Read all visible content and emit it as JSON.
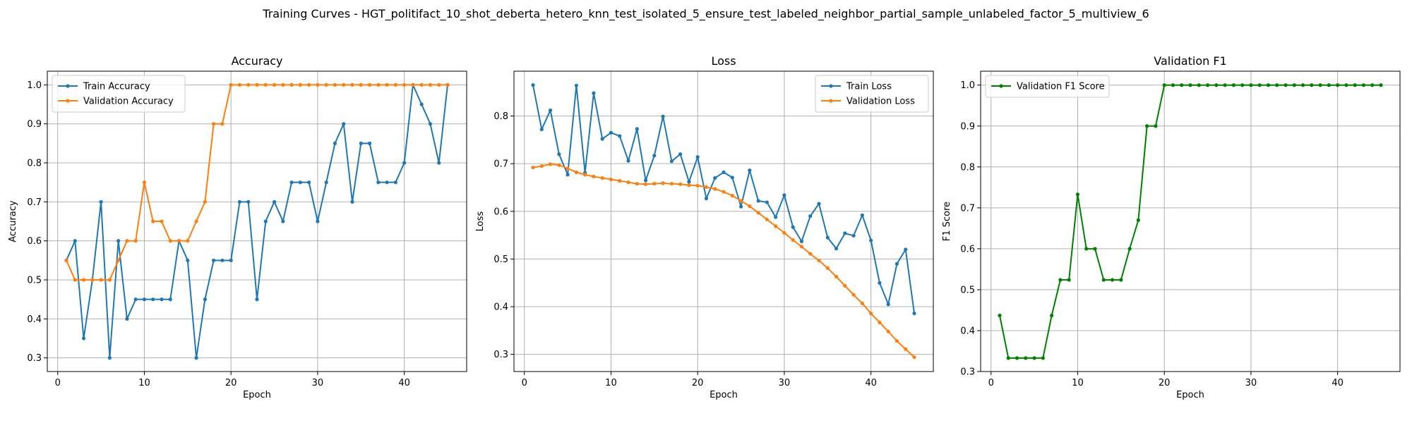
{
  "figure": {
    "title": "Training Curves - HGT_politifact_10_shot_deberta_hetero_knn_test_isolated_5_ensure_test_labeled_neighbor_partial_sample_unlabeled_factor_5_multiview_6"
  },
  "chart_data": [
    {
      "type": "line",
      "title": "Accuracy",
      "xlabel": "Epoch",
      "ylabel": "Accuracy",
      "xlim": [
        -1.2,
        47.2
      ],
      "ylim": [
        0.265,
        1.035
      ],
      "xticks": [
        0,
        10,
        20,
        30,
        40
      ],
      "yticks": [
        0.3,
        0.4,
        0.5,
        0.6,
        0.7,
        0.8,
        0.9,
        1.0
      ],
      "ytick_labels": [
        "0.3",
        "0.4",
        "0.5",
        "0.6",
        "0.7",
        "0.8",
        "0.9",
        "1.0"
      ],
      "grid": true,
      "legend": "top-left",
      "series": [
        {
          "name": "Train Accuracy",
          "color": "#1f77b4",
          "x": [
            1,
            2,
            3,
            4,
            5,
            6,
            7,
            8,
            9,
            10,
            11,
            12,
            13,
            14,
            15,
            16,
            17,
            18,
            19,
            20,
            21,
            22,
            23,
            24,
            25,
            26,
            27,
            28,
            29,
            30,
            31,
            32,
            33,
            34,
            35,
            36,
            37,
            38,
            39,
            40,
            41,
            42,
            43,
            44,
            45
          ],
          "values": [
            0.55,
            0.6,
            0.35,
            0.5,
            0.7,
            0.3,
            0.6,
            0.4,
            0.45,
            0.45,
            0.45,
            0.45,
            0.45,
            0.6,
            0.55,
            0.3,
            0.45,
            0.55,
            0.55,
            0.55,
            0.7,
            0.7,
            0.45,
            0.65,
            0.7,
            0.65,
            0.75,
            0.75,
            0.75,
            0.65,
            0.75,
            0.85,
            0.9,
            0.7,
            0.85,
            0.85,
            0.75,
            0.75,
            0.75,
            0.8,
            1.0,
            0.95,
            0.9,
            0.8,
            1.0
          ]
        },
        {
          "name": "Validation Accuracy",
          "color": "#ff7f0e",
          "x": [
            1,
            2,
            3,
            4,
            5,
            6,
            7,
            8,
            9,
            10,
            11,
            12,
            13,
            14,
            15,
            16,
            17,
            18,
            19,
            20,
            21,
            22,
            23,
            24,
            25,
            26,
            27,
            28,
            29,
            30,
            31,
            32,
            33,
            34,
            35,
            36,
            37,
            38,
            39,
            40,
            41,
            42,
            43,
            44,
            45
          ],
          "values": [
            0.55,
            0.5,
            0.5,
            0.5,
            0.5,
            0.5,
            0.55,
            0.6,
            0.6,
            0.75,
            0.65,
            0.65,
            0.6,
            0.6,
            0.6,
            0.65,
            0.7,
            0.9,
            0.9,
            1.0,
            1.0,
            1.0,
            1.0,
            1.0,
            1.0,
            1.0,
            1.0,
            1.0,
            1.0,
            1.0,
            1.0,
            1.0,
            1.0,
            1.0,
            1.0,
            1.0,
            1.0,
            1.0,
            1.0,
            1.0,
            1.0,
            1.0,
            1.0,
            1.0,
            1.0
          ]
        }
      ]
    },
    {
      "type": "line",
      "title": "Loss",
      "xlabel": "Epoch",
      "ylabel": "Loss",
      "xlim": [
        -1.2,
        47.2
      ],
      "ylim": [
        0.264,
        0.894
      ],
      "xticks": [
        0,
        10,
        20,
        30,
        40
      ],
      "yticks": [
        0.3,
        0.4,
        0.5,
        0.6,
        0.7,
        0.8
      ],
      "ytick_labels": [
        "0.3",
        "0.4",
        "0.5",
        "0.6",
        "0.7",
        "0.8"
      ],
      "grid": true,
      "legend": "top-right",
      "series": [
        {
          "name": "Train Loss",
          "color": "#1f77b4",
          "x": [
            1,
            2,
            3,
            4,
            5,
            6,
            7,
            8,
            9,
            10,
            11,
            12,
            13,
            14,
            15,
            16,
            17,
            18,
            19,
            20,
            21,
            22,
            23,
            24,
            25,
            26,
            27,
            28,
            29,
            30,
            31,
            32,
            33,
            34,
            35,
            36,
            37,
            38,
            39,
            40,
            41,
            42,
            43,
            44,
            45
          ],
          "values": [
            0.865,
            0.772,
            0.812,
            0.72,
            0.677,
            0.864,
            0.681,
            0.848,
            0.752,
            0.765,
            0.758,
            0.706,
            0.773,
            0.665,
            0.717,
            0.799,
            0.705,
            0.72,
            0.662,
            0.714,
            0.627,
            0.67,
            0.682,
            0.671,
            0.61,
            0.686,
            0.622,
            0.619,
            0.588,
            0.634,
            0.567,
            0.537,
            0.59,
            0.616,
            0.545,
            0.522,
            0.554,
            0.549,
            0.592,
            0.539,
            0.45,
            0.405,
            0.49,
            0.52,
            0.386
          ]
        },
        {
          "name": "Validation Loss",
          "color": "#ff7f0e",
          "x": [
            1,
            2,
            3,
            4,
            5,
            6,
            7,
            8,
            9,
            10,
            11,
            12,
            13,
            14,
            15,
            16,
            17,
            18,
            19,
            20,
            21,
            22,
            23,
            24,
            25,
            26,
            27,
            28,
            29,
            30,
            31,
            32,
            33,
            34,
            35,
            36,
            37,
            38,
            39,
            40,
            41,
            42,
            43,
            44,
            45
          ],
          "values": [
            0.692,
            0.695,
            0.699,
            0.697,
            0.69,
            0.682,
            0.677,
            0.673,
            0.67,
            0.667,
            0.664,
            0.661,
            0.658,
            0.657,
            0.658,
            0.659,
            0.658,
            0.657,
            0.655,
            0.654,
            0.651,
            0.647,
            0.641,
            0.633,
            0.622,
            0.611,
            0.597,
            0.583,
            0.569,
            0.555,
            0.54,
            0.526,
            0.511,
            0.497,
            0.481,
            0.463,
            0.444,
            0.425,
            0.407,
            0.386,
            0.367,
            0.348,
            0.328,
            0.311,
            0.294
          ]
        }
      ]
    },
    {
      "type": "line",
      "title": "Validation F1",
      "xlabel": "Epoch",
      "ylabel": "F1 Score",
      "xlim": [
        -1.2,
        47.2
      ],
      "ylim": [
        0.3,
        1.034
      ],
      "xticks": [
        0,
        10,
        20,
        30,
        40
      ],
      "yticks": [
        0.3,
        0.4,
        0.5,
        0.6,
        0.7,
        0.8,
        0.9,
        1.0
      ],
      "ytick_labels": [
        "0.3",
        "0.4",
        "0.5",
        "0.6",
        "0.7",
        "0.8",
        "0.9",
        "1.0"
      ],
      "grid": true,
      "legend": "top-left",
      "series": [
        {
          "name": "Validation F1 Score",
          "color": "#008000",
          "x": [
            1,
            2,
            3,
            4,
            5,
            6,
            7,
            8,
            9,
            10,
            11,
            12,
            13,
            14,
            15,
            16,
            17,
            18,
            19,
            20,
            21,
            22,
            23,
            24,
            25,
            26,
            27,
            28,
            29,
            30,
            31,
            32,
            33,
            34,
            35,
            36,
            37,
            38,
            39,
            40,
            41,
            42,
            43,
            44,
            45
          ],
          "values": [
            0.437,
            0.333,
            0.333,
            0.333,
            0.333,
            0.333,
            0.437,
            0.524,
            0.524,
            0.733,
            0.6,
            0.6,
            0.524,
            0.524,
            0.524,
            0.6,
            0.67,
            0.9,
            0.9,
            1.0,
            1.0,
            1.0,
            1.0,
            1.0,
            1.0,
            1.0,
            1.0,
            1.0,
            1.0,
            1.0,
            1.0,
            1.0,
            1.0,
            1.0,
            1.0,
            1.0,
            1.0,
            1.0,
            1.0,
            1.0,
            1.0,
            1.0,
            1.0,
            1.0,
            1.0
          ]
        }
      ]
    }
  ]
}
